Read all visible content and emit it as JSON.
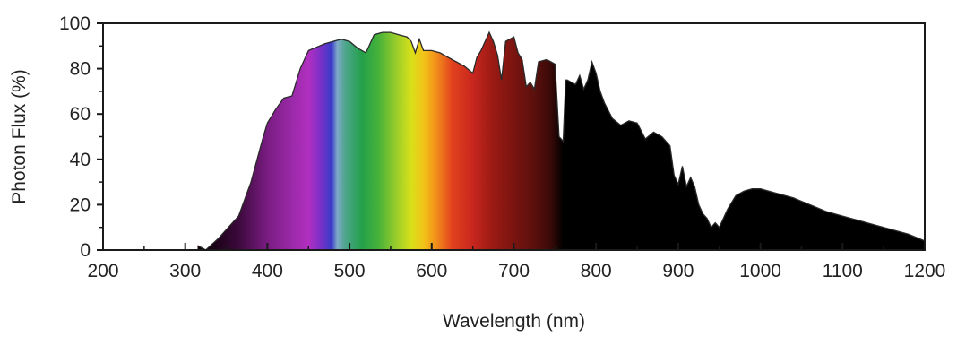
{
  "chart_data": {
    "type": "area",
    "title": "",
    "xlabel": "Wavelength (nm)",
    "ylabel": "Photon Flux (%)",
    "xlim": [
      200,
      1200
    ],
    "ylim": [
      0,
      100
    ],
    "x_ticks": [
      200,
      300,
      400,
      500,
      600,
      700,
      800,
      900,
      1000,
      1100,
      1200
    ],
    "y_ticks": [
      0,
      20,
      40,
      60,
      80,
      100
    ],
    "grid": false,
    "fill": "visible spectrum color gradient (violet to red) from ~330 nm to ~760 nm, black beyond",
    "x": [
      315,
      325,
      340,
      355,
      365,
      380,
      395,
      400,
      410,
      420,
      430,
      440,
      450,
      470,
      490,
      500,
      510,
      520,
      530,
      540,
      550,
      560,
      570,
      575,
      580,
      585,
      590,
      600,
      610,
      620,
      630,
      640,
      650,
      655,
      660,
      670,
      675,
      680,
      685,
      690,
      695,
      700,
      705,
      710,
      715,
      720,
      725,
      730,
      740,
      750,
      755,
      760,
      763,
      765,
      775,
      780,
      785,
      790,
      795,
      800,
      805,
      810,
      820,
      830,
      840,
      850,
      860,
      870,
      880,
      890,
      895,
      900,
      905,
      910,
      915,
      920,
      925,
      930,
      935,
      940,
      945,
      950,
      960,
      970,
      980,
      990,
      1000,
      1020,
      1040,
      1060,
      1080,
      1100,
      1120,
      1140,
      1160,
      1180,
      1200
    ],
    "values": [
      2,
      0,
      5,
      11,
      15,
      30,
      50,
      56,
      62,
      67,
      68,
      80,
      88,
      91,
      93,
      92,
      89,
      87,
      95,
      96,
      96,
      95,
      94,
      92,
      87,
      93,
      88,
      88,
      87,
      85,
      83,
      81,
      78,
      85,
      88,
      96,
      92,
      86,
      75,
      92,
      93,
      94,
      87,
      84,
      72,
      74,
      71,
      83,
      84,
      82,
      50,
      48,
      75,
      75,
      73,
      77,
      71,
      75,
      83,
      78,
      70,
      65,
      58,
      55,
      57,
      56,
      49,
      52,
      50,
      46,
      33,
      29,
      37,
      28,
      32,
      28,
      20,
      16,
      14,
      10,
      12,
      10,
      18,
      24,
      26,
      27,
      27,
      25,
      23,
      20,
      17,
      15,
      13,
      11,
      9,
      7,
      4
    ]
  }
}
